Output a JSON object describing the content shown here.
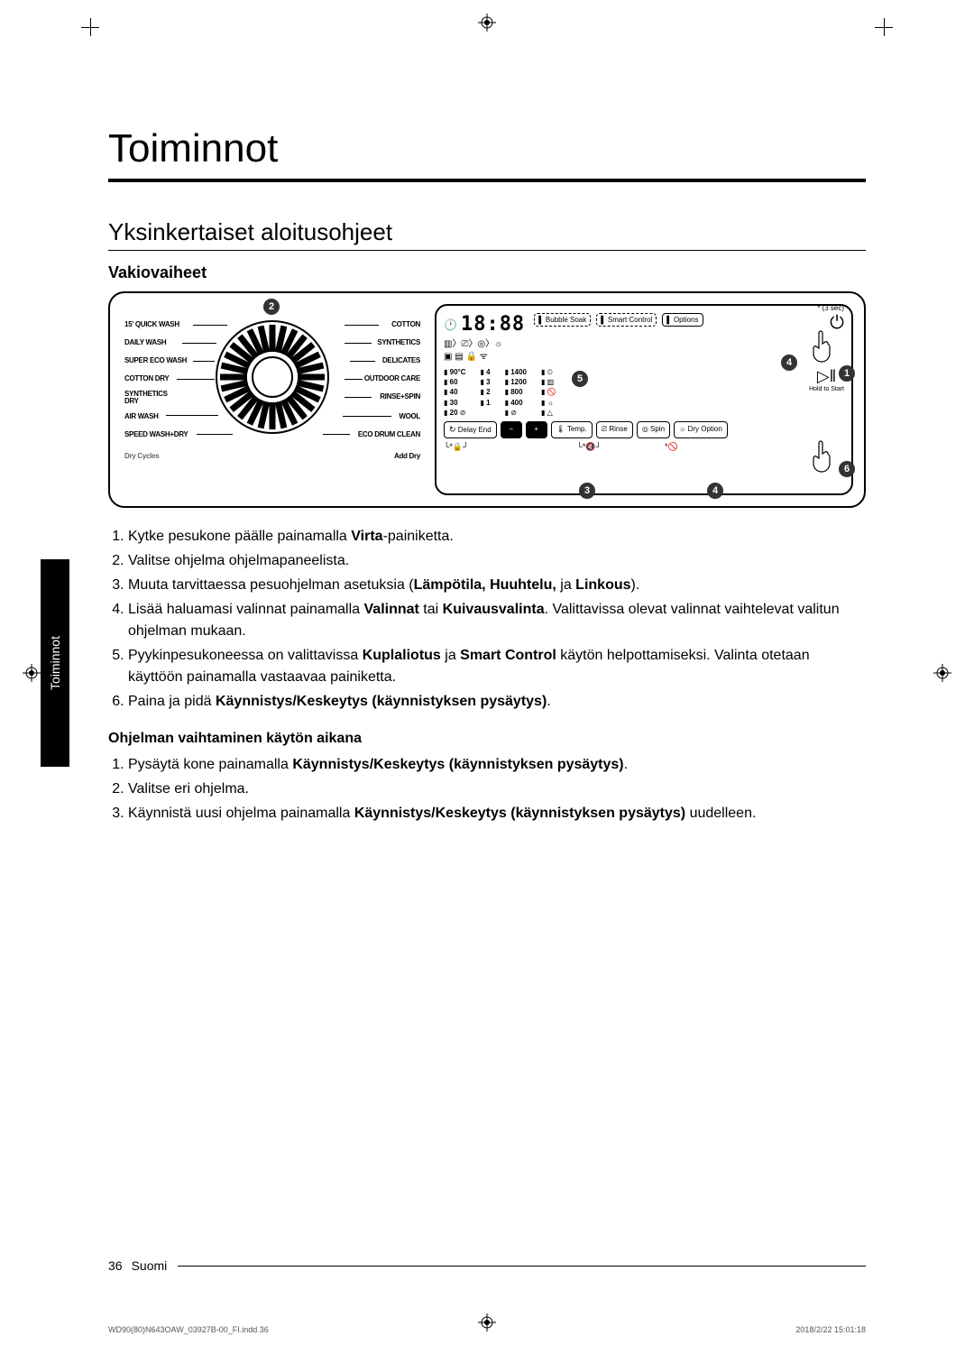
{
  "title": "Toiminnot",
  "section": "Yksinkertaiset aloitusohjeet",
  "sub1": "Vakiovaiheet",
  "sub2": "Ohjelman vaihtaminen käytön aikana",
  "side_tab": "Toiminnot",
  "dial": {
    "left": [
      "15' QUICK WASH",
      "DAILY WASH",
      "SUPER ECO WASH",
      "COTTON DRY",
      "SYNTHETICS DRY",
      "AIR WASH",
      "SPEED WASH+DRY"
    ],
    "right": [
      "COTTON",
      "SYNTHETICS",
      "DELICATES",
      "OUTDOOR CARE",
      "RINSE+SPIN",
      "WOOL",
      "ECO DRUM CLEAN"
    ],
    "bottom_left": "Dry Cycles",
    "bottom_right": "Add Dry"
  },
  "panel": {
    "star_note": "* (3 sec)",
    "display": "18:88",
    "bubble": "Bubble Soak",
    "smart": "Smart Control",
    "options": "Options",
    "temps": [
      "90°C",
      "60",
      "40",
      "30",
      "20"
    ],
    "rinse": [
      "5",
      "4",
      "3",
      "2",
      "1"
    ],
    "spin": [
      "1400",
      "1200",
      "800",
      "400"
    ],
    "delay": "Delay End",
    "minus": "−",
    "plus": "+",
    "btn_temp": "Temp.",
    "btn_rinse": "Rinse",
    "btn_spin": "Spin",
    "btn_dry": "Dry Option",
    "hold": "Hold to Start",
    "play": "▷‖",
    "power": "⏻"
  },
  "callouts": [
    "1",
    "2",
    "3",
    "4",
    "5",
    "6"
  ],
  "steps1": {
    "1a": "Kytke pesukone päälle painamalla ",
    "1b": "Virta",
    "1c": "-painiketta.",
    "2": "Valitse ohjelma ohjelmapaneelista.",
    "3a": "Muuta tarvittaessa pesuohjelman asetuksia (",
    "3b": "Lämpötila, Huuhtelu,",
    "3c": " ja ",
    "3d": "Linkous",
    "3e": ").",
    "4a": "Lisää haluamasi valinnat painamalla ",
    "4b": "Valinnat",
    "4c": " tai ",
    "4d": "Kuivausvalinta",
    "4e": ". Valittavissa olevat valinnat vaihtelevat valitun ohjelman mukaan.",
    "5a": "Pyykinpesukoneessa on valittavissa ",
    "5b": "Kuplaliotus",
    "5c": " ja ",
    "5d": "Smart Control",
    "5e": " käytön helpottamiseksi. Valinta otetaan käyttöön painamalla vastaavaa painiketta.",
    "6a": "Paina ja pidä ",
    "6b": "Käynnistys/Keskeytys (käynnistyksen pysäytys)",
    "6c": "."
  },
  "steps2": {
    "1a": "Pysäytä kone painamalla ",
    "1b": "Käynnistys/Keskeytys (käynnistyksen pysäytys)",
    "1c": ".",
    "2": "Valitse eri ohjelma.",
    "3a": "Käynnistä uusi ohjelma painamalla ",
    "3b": "Käynnistys/Keskeytys (käynnistyksen pysäytys)",
    "3c": " uudelleen."
  },
  "footer": {
    "page": "36",
    "lang": "Suomi"
  },
  "meta": {
    "file": "WD90(80)N643OAW_03927B-00_FI.indd   36",
    "timestamp": "2018/2/22   15:01:18"
  }
}
